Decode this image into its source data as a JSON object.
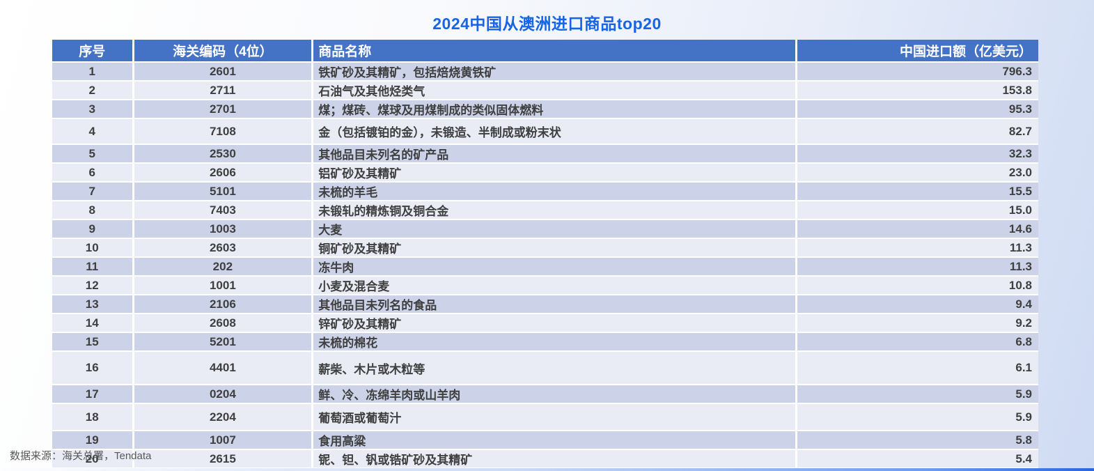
{
  "title": "2024中国从澳洲进口商品top20",
  "source_note": "数据来源：海关总署，Tendata",
  "colors": {
    "title_text": "#1565e5",
    "header_bg": "#4472c4",
    "header_text": "#ffffff",
    "row_odd_bg": "#ccd3e8",
    "row_even_bg": "#e9ebf5",
    "cell_text": "#3f3f3f",
    "source_text": "#595959"
  },
  "table": {
    "headers": [
      "序号",
      "海关编码（4位）",
      "商品名称",
      "中国进口额（亿美元）"
    ],
    "rows": [
      {
        "no": "1",
        "code": "2601",
        "name": "铁矿砂及其精矿，包括焙烧黄铁矿",
        "value": "796.3"
      },
      {
        "no": "2",
        "code": "2711",
        "name": "石油气及其他烃类气",
        "value": "153.8"
      },
      {
        "no": "3",
        "code": "2701",
        "name": "煤；煤砖、煤球及用煤制成的类似固体燃料",
        "value": "95.3"
      },
      {
        "no": "4",
        "code": "7108",
        "name": "金（包括镀铂的金），未锻造、半制成或粉末状",
        "value": "82.7"
      },
      {
        "no": "5",
        "code": "2530",
        "name": "其他品目未列名的矿产品",
        "value": "32.3"
      },
      {
        "no": "6",
        "code": "2606",
        "name": "铝矿砂及其精矿",
        "value": "23.0"
      },
      {
        "no": "7",
        "code": "5101",
        "name": "未梳的羊毛",
        "value": "15.5"
      },
      {
        "no": "8",
        "code": "7403",
        "name": "未锻轧的精炼铜及铜合金",
        "value": "15.0"
      },
      {
        "no": "9",
        "code": "1003",
        "name": "大麦",
        "value": "14.6"
      },
      {
        "no": "10",
        "code": "2603",
        "name": "铜矿砂及其精矿",
        "value": "11.3"
      },
      {
        "no": "11",
        "code": "202",
        "name": "冻牛肉",
        "value": "11.3"
      },
      {
        "no": "12",
        "code": "1001",
        "name": "小麦及混合麦",
        "value": "10.8"
      },
      {
        "no": "13",
        "code": "2106",
        "name": "其他品目未列名的食品",
        "value": "9.4"
      },
      {
        "no": "14",
        "code": "2608",
        "name": "锌矿砂及其精矿",
        "value": "9.2"
      },
      {
        "no": "15",
        "code": "5201",
        "name": "未梳的棉花",
        "value": "6.8"
      },
      {
        "no": "16",
        "code": "4401",
        "name": "薪柴、木片或木粒等",
        "value": "6.1"
      },
      {
        "no": "17",
        "code": "0204",
        "name": "鲜、冷、冻绵羊肉或山羊肉",
        "value": "5.9"
      },
      {
        "no": "18",
        "code": "2204",
        "name": "葡萄酒或葡萄汁",
        "value": "5.9"
      },
      {
        "no": "19",
        "code": "1007",
        "name": "食用高粱",
        "value": "5.8"
      },
      {
        "no": "20",
        "code": "2615",
        "name": "铌、钽、钒或锆矿砂及其精矿",
        "value": "5.4"
      }
    ]
  },
  "chart_data": {
    "type": "table",
    "title": "2024中国从澳洲进口商品top20",
    "columns": [
      "序号",
      "海关编码（4位）",
      "商品名称",
      "中国进口额（亿美元）"
    ],
    "unit": "亿美元",
    "rows": [
      [
        1,
        "2601",
        "铁矿砂及其精矿，包括焙烧黄铁矿",
        796.3
      ],
      [
        2,
        "2711",
        "石油气及其他烃类气",
        153.8
      ],
      [
        3,
        "2701",
        "煤；煤砖、煤球及用煤制成的类似固体燃料",
        95.3
      ],
      [
        4,
        "7108",
        "金（包括镀铂的金），未锻造、半制成或粉末状",
        82.7
      ],
      [
        5,
        "2530",
        "其他品目未列名的矿产品",
        32.3
      ],
      [
        6,
        "2606",
        "铝矿砂及其精矿",
        23.0
      ],
      [
        7,
        "5101",
        "未梳的羊毛",
        15.5
      ],
      [
        8,
        "7403",
        "未锻轧的精炼铜及铜合金",
        15.0
      ],
      [
        9,
        "1003",
        "大麦",
        14.6
      ],
      [
        10,
        "2603",
        "铜矿砂及其精矿",
        11.3
      ],
      [
        11,
        "202",
        "冻牛肉",
        11.3
      ],
      [
        12,
        "1001",
        "小麦及混合麦",
        10.8
      ],
      [
        13,
        "2106",
        "其他品目未列名的食品",
        9.4
      ],
      [
        14,
        "2608",
        "锌矿砂及其精矿",
        9.2
      ],
      [
        15,
        "5201",
        "未梳的棉花",
        6.8
      ],
      [
        16,
        "4401",
        "薪柴、木片或木粒等",
        6.1
      ],
      [
        17,
        "0204",
        "鲜、冷、冻绵羊肉或山羊肉",
        5.9
      ],
      [
        18,
        "2204",
        "葡萄酒或葡萄汁",
        5.9
      ],
      [
        19,
        "1007",
        "食用高粱",
        5.8
      ],
      [
        20,
        "2615",
        "铌、钽、钒或锆矿砂及其精矿",
        5.4
      ]
    ],
    "source": "数据来源：海关总署，Tendata"
  }
}
